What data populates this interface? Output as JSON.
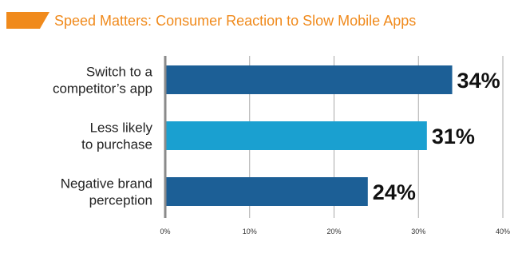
{
  "colors": {
    "accent": "#f08a1c",
    "bar_dark": "#1c5f96",
    "bar_light": "#1aa0d0",
    "gridline": "#aaaaaa",
    "axis": "#8a8a8a"
  },
  "chart_data": {
    "type": "bar",
    "orientation": "horizontal",
    "title": "Speed Matters: Consumer Reaction to Slow Mobile Apps",
    "categories": [
      "Switch to a competitor’s app",
      "Less likely to purchase",
      "Negative brand perception"
    ],
    "category_lines": [
      [
        "Switch to a",
        "competitor’s app"
      ],
      [
        "Less likely",
        "to purchase"
      ],
      [
        "Negative brand",
        "perception"
      ]
    ],
    "values": [
      34,
      31,
      24
    ],
    "value_labels": [
      "34%",
      "31%",
      "24%"
    ],
    "bar_colors": [
      "#1c5f96",
      "#1aa0d0",
      "#1c5f96"
    ],
    "xlim": [
      0,
      40
    ],
    "xticks": [
      0,
      10,
      20,
      30,
      40
    ],
    "xtick_labels": [
      "0%",
      "10%",
      "20%",
      "30%",
      "40%"
    ],
    "grid": true,
    "legend": "none"
  }
}
